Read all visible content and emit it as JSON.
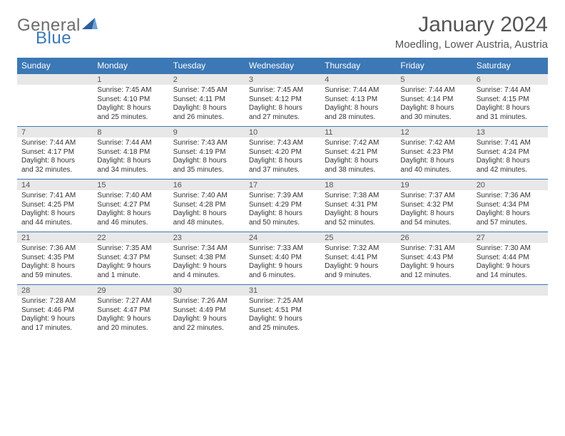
{
  "logo": {
    "word1": "General",
    "word2": "Blue",
    "sail_color": "#2d5f9a"
  },
  "title": "January 2024",
  "location": "Moedling, Lower Austria, Austria",
  "colors": {
    "header_bg": "#3b78b5",
    "header_text": "#ffffff",
    "strip_bg": "#e8e8e8",
    "rule": "#3b78b5"
  },
  "day_names": [
    "Sunday",
    "Monday",
    "Tuesday",
    "Wednesday",
    "Thursday",
    "Friday",
    "Saturday"
  ],
  "weeks": [
    [
      {
        "num": "",
        "lines": [
          "",
          "",
          "",
          ""
        ]
      },
      {
        "num": "1",
        "lines": [
          "Sunrise: 7:45 AM",
          "Sunset: 4:10 PM",
          "Daylight: 8 hours",
          "and 25 minutes."
        ]
      },
      {
        "num": "2",
        "lines": [
          "Sunrise: 7:45 AM",
          "Sunset: 4:11 PM",
          "Daylight: 8 hours",
          "and 26 minutes."
        ]
      },
      {
        "num": "3",
        "lines": [
          "Sunrise: 7:45 AM",
          "Sunset: 4:12 PM",
          "Daylight: 8 hours",
          "and 27 minutes."
        ]
      },
      {
        "num": "4",
        "lines": [
          "Sunrise: 7:44 AM",
          "Sunset: 4:13 PM",
          "Daylight: 8 hours",
          "and 28 minutes."
        ]
      },
      {
        "num": "5",
        "lines": [
          "Sunrise: 7:44 AM",
          "Sunset: 4:14 PM",
          "Daylight: 8 hours",
          "and 30 minutes."
        ]
      },
      {
        "num": "6",
        "lines": [
          "Sunrise: 7:44 AM",
          "Sunset: 4:15 PM",
          "Daylight: 8 hours",
          "and 31 minutes."
        ]
      }
    ],
    [
      {
        "num": "7",
        "lines": [
          "Sunrise: 7:44 AM",
          "Sunset: 4:17 PM",
          "Daylight: 8 hours",
          "and 32 minutes."
        ]
      },
      {
        "num": "8",
        "lines": [
          "Sunrise: 7:44 AM",
          "Sunset: 4:18 PM",
          "Daylight: 8 hours",
          "and 34 minutes."
        ]
      },
      {
        "num": "9",
        "lines": [
          "Sunrise: 7:43 AM",
          "Sunset: 4:19 PM",
          "Daylight: 8 hours",
          "and 35 minutes."
        ]
      },
      {
        "num": "10",
        "lines": [
          "Sunrise: 7:43 AM",
          "Sunset: 4:20 PM",
          "Daylight: 8 hours",
          "and 37 minutes."
        ]
      },
      {
        "num": "11",
        "lines": [
          "Sunrise: 7:42 AM",
          "Sunset: 4:21 PM",
          "Daylight: 8 hours",
          "and 38 minutes."
        ]
      },
      {
        "num": "12",
        "lines": [
          "Sunrise: 7:42 AM",
          "Sunset: 4:23 PM",
          "Daylight: 8 hours",
          "and 40 minutes."
        ]
      },
      {
        "num": "13",
        "lines": [
          "Sunrise: 7:41 AM",
          "Sunset: 4:24 PM",
          "Daylight: 8 hours",
          "and 42 minutes."
        ]
      }
    ],
    [
      {
        "num": "14",
        "lines": [
          "Sunrise: 7:41 AM",
          "Sunset: 4:25 PM",
          "Daylight: 8 hours",
          "and 44 minutes."
        ]
      },
      {
        "num": "15",
        "lines": [
          "Sunrise: 7:40 AM",
          "Sunset: 4:27 PM",
          "Daylight: 8 hours",
          "and 46 minutes."
        ]
      },
      {
        "num": "16",
        "lines": [
          "Sunrise: 7:40 AM",
          "Sunset: 4:28 PM",
          "Daylight: 8 hours",
          "and 48 minutes."
        ]
      },
      {
        "num": "17",
        "lines": [
          "Sunrise: 7:39 AM",
          "Sunset: 4:29 PM",
          "Daylight: 8 hours",
          "and 50 minutes."
        ]
      },
      {
        "num": "18",
        "lines": [
          "Sunrise: 7:38 AM",
          "Sunset: 4:31 PM",
          "Daylight: 8 hours",
          "and 52 minutes."
        ]
      },
      {
        "num": "19",
        "lines": [
          "Sunrise: 7:37 AM",
          "Sunset: 4:32 PM",
          "Daylight: 8 hours",
          "and 54 minutes."
        ]
      },
      {
        "num": "20",
        "lines": [
          "Sunrise: 7:36 AM",
          "Sunset: 4:34 PM",
          "Daylight: 8 hours",
          "and 57 minutes."
        ]
      }
    ],
    [
      {
        "num": "21",
        "lines": [
          "Sunrise: 7:36 AM",
          "Sunset: 4:35 PM",
          "Daylight: 8 hours",
          "and 59 minutes."
        ]
      },
      {
        "num": "22",
        "lines": [
          "Sunrise: 7:35 AM",
          "Sunset: 4:37 PM",
          "Daylight: 9 hours",
          "and 1 minute."
        ]
      },
      {
        "num": "23",
        "lines": [
          "Sunrise: 7:34 AM",
          "Sunset: 4:38 PM",
          "Daylight: 9 hours",
          "and 4 minutes."
        ]
      },
      {
        "num": "24",
        "lines": [
          "Sunrise: 7:33 AM",
          "Sunset: 4:40 PM",
          "Daylight: 9 hours",
          "and 6 minutes."
        ]
      },
      {
        "num": "25",
        "lines": [
          "Sunrise: 7:32 AM",
          "Sunset: 4:41 PM",
          "Daylight: 9 hours",
          "and 9 minutes."
        ]
      },
      {
        "num": "26",
        "lines": [
          "Sunrise: 7:31 AM",
          "Sunset: 4:43 PM",
          "Daylight: 9 hours",
          "and 12 minutes."
        ]
      },
      {
        "num": "27",
        "lines": [
          "Sunrise: 7:30 AM",
          "Sunset: 4:44 PM",
          "Daylight: 9 hours",
          "and 14 minutes."
        ]
      }
    ],
    [
      {
        "num": "28",
        "lines": [
          "Sunrise: 7:28 AM",
          "Sunset: 4:46 PM",
          "Daylight: 9 hours",
          "and 17 minutes."
        ]
      },
      {
        "num": "29",
        "lines": [
          "Sunrise: 7:27 AM",
          "Sunset: 4:47 PM",
          "Daylight: 9 hours",
          "and 20 minutes."
        ]
      },
      {
        "num": "30",
        "lines": [
          "Sunrise: 7:26 AM",
          "Sunset: 4:49 PM",
          "Daylight: 9 hours",
          "and 22 minutes."
        ]
      },
      {
        "num": "31",
        "lines": [
          "Sunrise: 7:25 AM",
          "Sunset: 4:51 PM",
          "Daylight: 9 hours",
          "and 25 minutes."
        ]
      },
      {
        "num": "",
        "lines": [
          "",
          "",
          "",
          ""
        ]
      },
      {
        "num": "",
        "lines": [
          "",
          "",
          "",
          ""
        ]
      },
      {
        "num": "",
        "lines": [
          "",
          "",
          "",
          ""
        ]
      }
    ]
  ]
}
